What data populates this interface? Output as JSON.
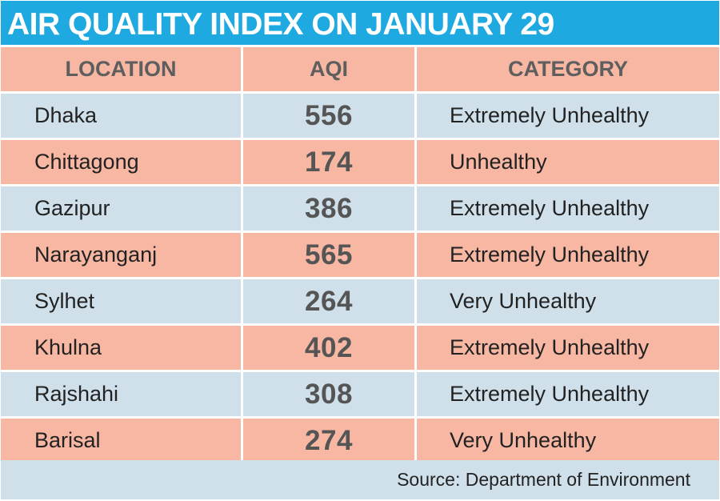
{
  "chart_data": {
    "type": "table",
    "title": "AIR QUALITY INDEX ON JANUARY 29",
    "columns": [
      "LOCATION",
      "AQI",
      "CATEGORY"
    ],
    "rows": [
      {
        "location": "Dhaka",
        "aqi": "556",
        "category": "Extremely Unhealthy"
      },
      {
        "location": "Chittagong",
        "aqi": "174",
        "category": "Unhealthy"
      },
      {
        "location": "Gazipur",
        "aqi": "386",
        "category": "Extremely Unhealthy"
      },
      {
        "location": "Narayanganj",
        "aqi": "565",
        "category": "Extremely Unhealthy"
      },
      {
        "location": "Sylhet",
        "aqi": "264",
        "category": "Very Unhealthy"
      },
      {
        "location": "Khulna",
        "aqi": "402",
        "category": "Extremely Unhealthy"
      },
      {
        "location": "Rajshahi",
        "aqi": "308",
        "category": "Extremely Unhealthy"
      },
      {
        "location": "Barisal",
        "aqi": "274",
        "category": "Very Unhealthy"
      }
    ],
    "source": "Source: Department of Environment"
  },
  "colors": {
    "title_bar": "#1fa9e1",
    "salmon_row": "#f7b7a3",
    "blue_row": "#cfe0ea",
    "source_bar": "#cfe0ea"
  }
}
